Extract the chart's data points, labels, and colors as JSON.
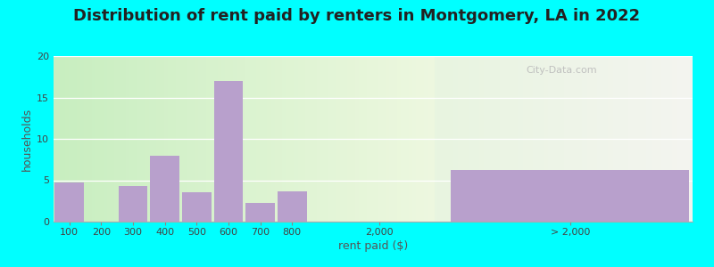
{
  "title": "Distribution of rent paid by renters in Montgomery, LA in 2022",
  "xlabel": "rent paid ($)",
  "ylabel": "households",
  "background_outer": "#00FFFF",
  "background_plot_left": "#d8f0d0",
  "background_plot_right": "#e8f0e0",
  "bar_color": "#b8a0cc",
  "ylim": [
    0,
    20
  ],
  "yticks": [
    0,
    5,
    10,
    15,
    20
  ],
  "left_bars": {
    "labels": [
      "100",
      "200",
      "300",
      "400",
      "500",
      "600",
      "700",
      "800"
    ],
    "values": [
      4.7,
      0,
      4.3,
      8.0,
      3.5,
      17.0,
      2.3,
      3.7
    ]
  },
  "right_bar": {
    "label": "> 2,000",
    "value": 6.2
  },
  "mid_tick": "2,000",
  "watermark": "City-Data.com",
  "title_fontsize": 13,
  "axis_label_fontsize": 9,
  "tick_fontsize": 8
}
